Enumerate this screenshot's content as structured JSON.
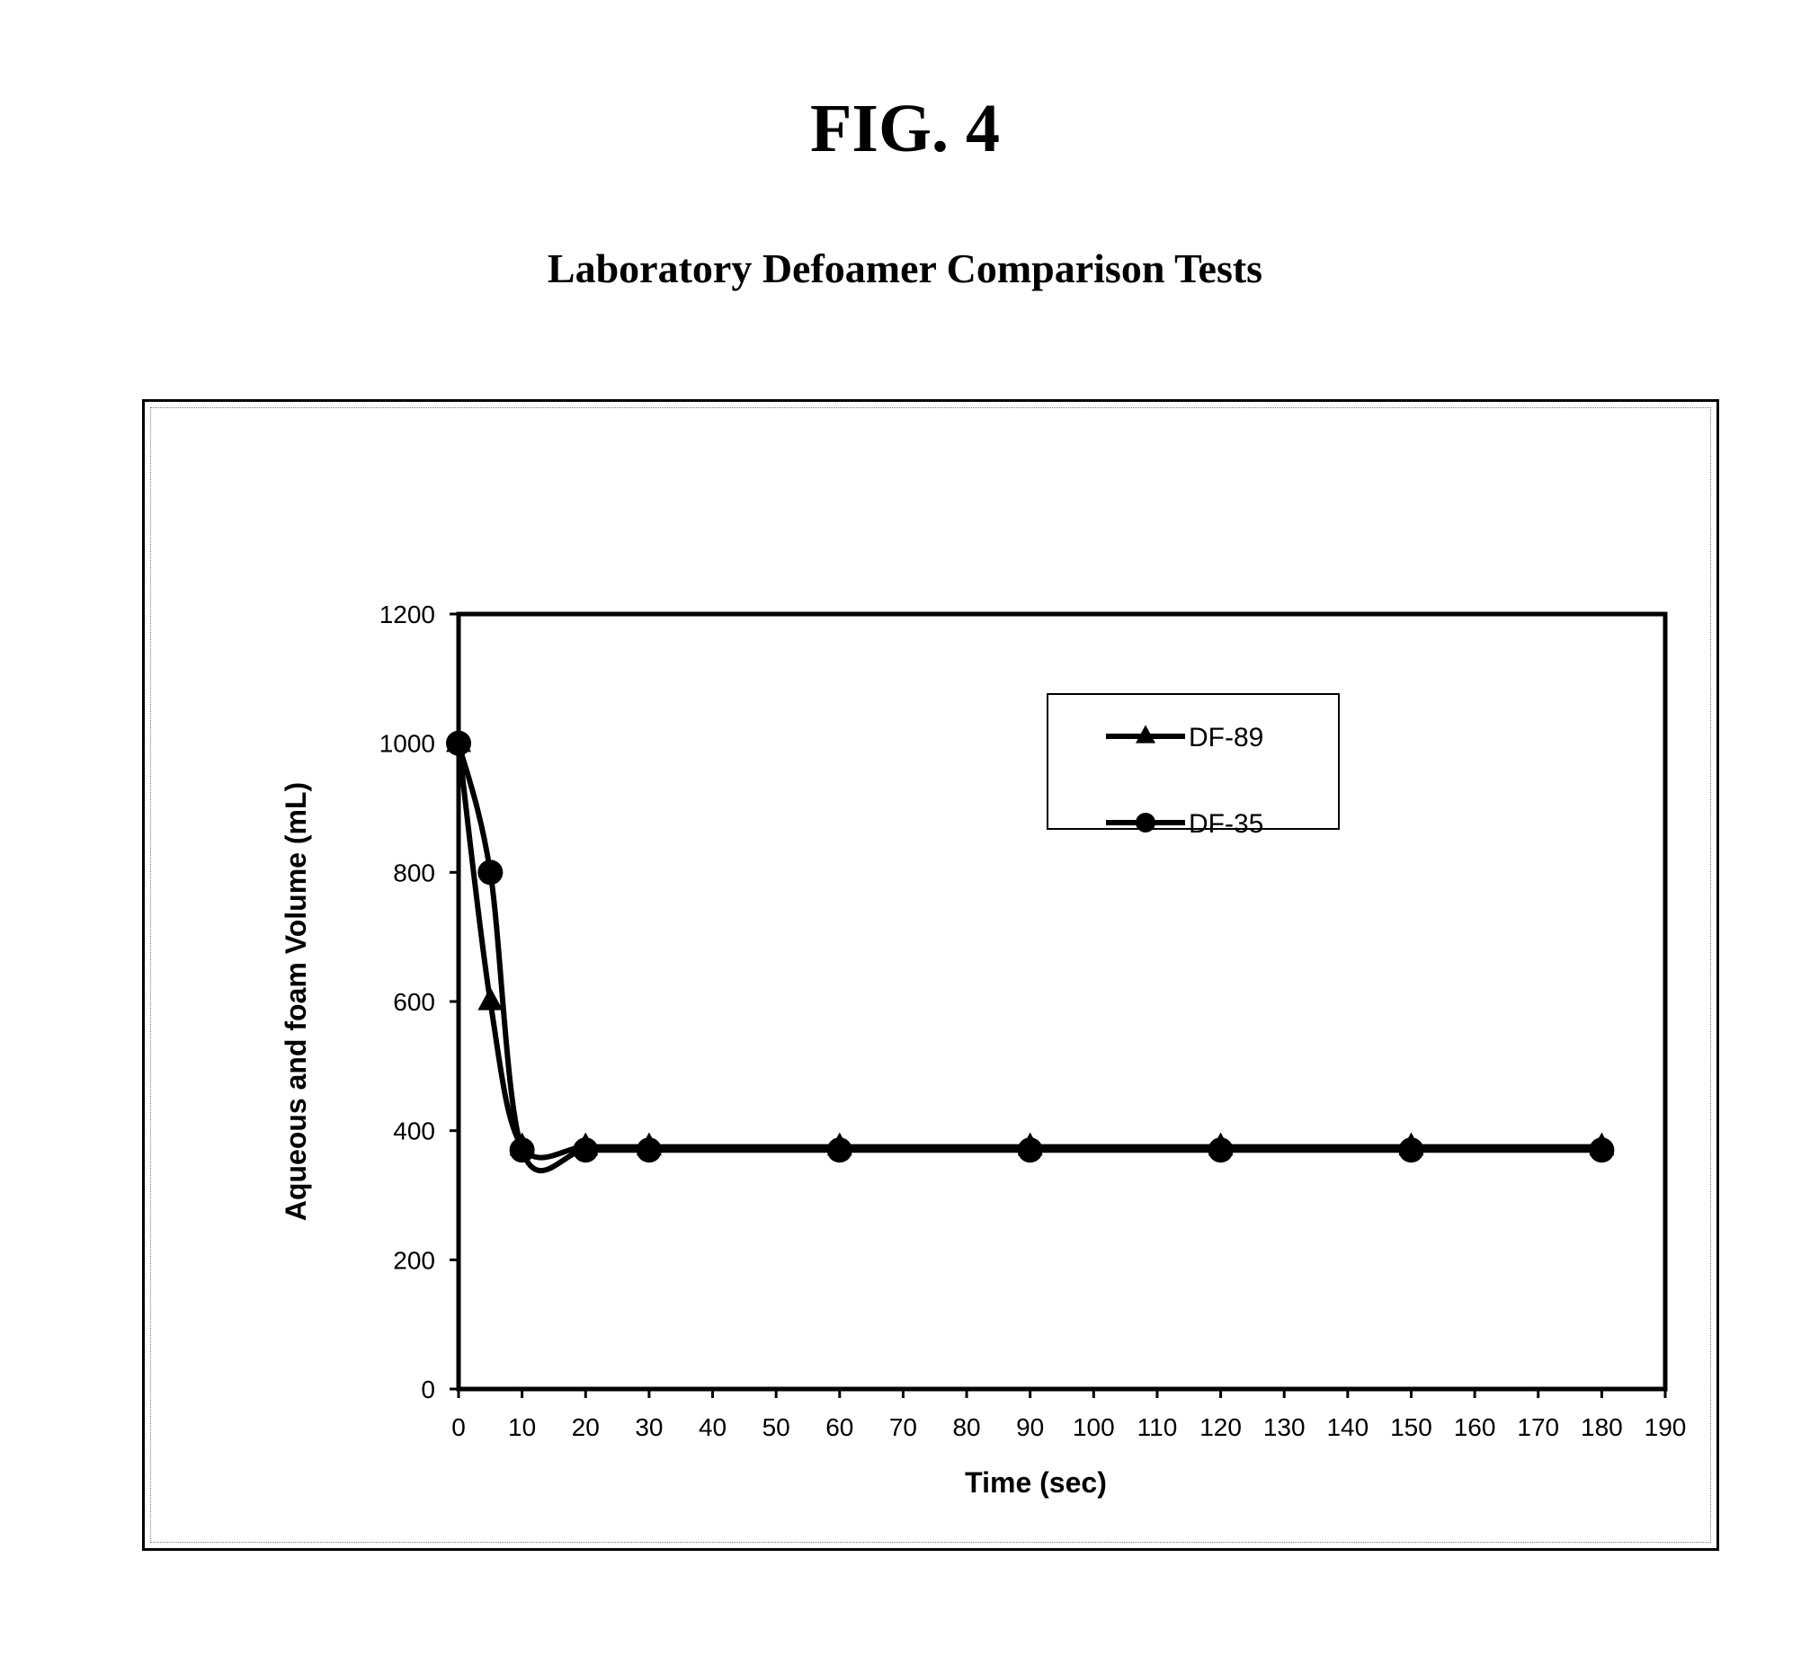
{
  "figure": {
    "label": "FIG. 4",
    "title": "Laboratory Defoamer Comparison Tests"
  },
  "chart_data": {
    "type": "line",
    "title": "Laboratory Defoamer Comparison Tests",
    "xlabel": "Time (sec)",
    "ylabel": "Aqueous and foam Volume (mL)",
    "xlim": [
      0,
      190
    ],
    "ylim": [
      0,
      1200
    ],
    "x_ticks": [
      0,
      10,
      20,
      30,
      40,
      50,
      60,
      70,
      80,
      90,
      100,
      110,
      120,
      130,
      140,
      150,
      160,
      170,
      180,
      190
    ],
    "y_ticks": [
      0,
      200,
      400,
      600,
      800,
      1000,
      1200
    ],
    "grid": false,
    "legend_position": "top-right",
    "series": [
      {
        "name": "DF-89",
        "marker": "triangle",
        "color": "#000000",
        "x": [
          0,
          5,
          10,
          20,
          30,
          60,
          90,
          120,
          150,
          180
        ],
        "y": [
          1000,
          600,
          375,
          375,
          375,
          375,
          375,
          375,
          375,
          375
        ]
      },
      {
        "name": "DF-35",
        "marker": "circle",
        "color": "#000000",
        "x": [
          0,
          5,
          10,
          20,
          30,
          60,
          90,
          120,
          150,
          180
        ],
        "y": [
          1000,
          800,
          370,
          370,
          370,
          370,
          370,
          370,
          370,
          370
        ]
      }
    ]
  }
}
